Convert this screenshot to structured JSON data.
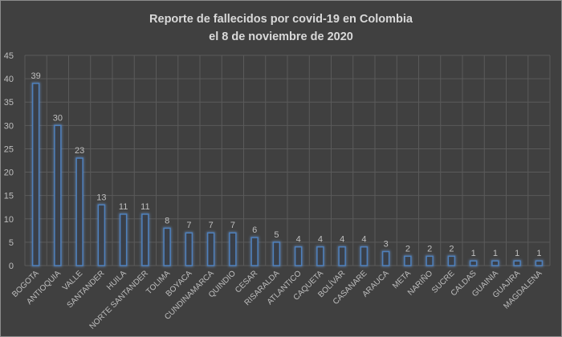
{
  "chart_data": {
    "type": "bar",
    "title": [
      "Reporte de fallecidos por covid-19 en Colombia",
      "el 8 de noviembre de 2020"
    ],
    "xlabel": "",
    "ylabel": "",
    "ylim": [
      0,
      45
    ],
    "yticks": [
      0,
      5,
      10,
      15,
      20,
      25,
      30,
      35,
      40,
      45
    ],
    "grid": true,
    "categories": [
      "BOGOTA",
      "ANTIOQUIA",
      "VALLE",
      "SANTANDER",
      "HUILA",
      "NORTE SANTANDER",
      "TOLIMA",
      "BOYACA",
      "CUNDINAMARCA",
      "QUINDIO",
      "CESAR",
      "RISARALDA",
      "ATLANTICO",
      "CAQUETA",
      "BOLÍVAR",
      "CASANARE",
      "ARAUCA",
      "META",
      "NARIÑO",
      "SUCRE",
      "CALDAS",
      "GUAINIA",
      "GUAJIRA",
      "MAGDALENA"
    ],
    "values": [
      39,
      30,
      23,
      13,
      11,
      11,
      8,
      7,
      7,
      7,
      6,
      5,
      4,
      4,
      4,
      4,
      3,
      2,
      2,
      2,
      1,
      1,
      1,
      1
    ],
    "colors": {
      "background": "#404040",
      "bar_outline": "#4f81bd",
      "bar_fill": "#3a3f48",
      "grid": "#5a5a5a",
      "text": "#bfbfbf"
    }
  }
}
